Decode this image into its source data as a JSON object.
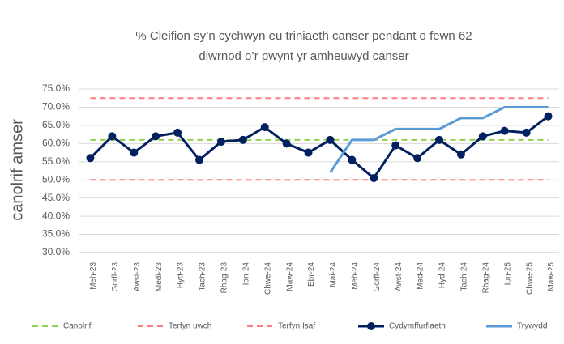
{
  "chart_data": {
    "type": "line",
    "title": [
      "% Cleifion sy’n cychwyn eu triniaeth canser pendant o fewn 62",
      "diwrnod o’r pwynt yr amheuwyd canser"
    ],
    "y_label": "canolrif amser",
    "categories": [
      "Meh-23",
      "Gorff-23",
      "Awst-23",
      "Medi-23",
      "Hyd-23",
      "Tach-23",
      "Rhag-23",
      "Ion-24",
      "Chwe-24",
      "Maw-24",
      "Ebr-24",
      "Mai-24",
      "Meh-24",
      "Gorff-24",
      "Awst-24",
      "Med-24",
      "Hyd-24",
      "Tach-24",
      "Rhag-24",
      "Ion-25",
      "Chwe-25",
      "Maw-25"
    ],
    "ylim": [
      30,
      75
    ],
    "yticks": [
      {
        "value": 30,
        "label": "30.0%"
      },
      {
        "value": 35,
        "label": "35.0%"
      },
      {
        "value": 40,
        "label": "40.0%"
      },
      {
        "value": 45,
        "label": "45.0%"
      },
      {
        "value": 50,
        "label": "50.0%"
      },
      {
        "value": 55,
        "label": "55.0%"
      },
      {
        "value": 60,
        "label": "60.0%"
      },
      {
        "value": 65,
        "label": "65.0%"
      },
      {
        "value": 70,
        "label": "70.0%"
      },
      {
        "value": 75,
        "label": "75.0%"
      }
    ],
    "grid": true,
    "legend": "bottom",
    "series": [
      {
        "name": "Canolrif",
        "color": "#92d050",
        "dash": true,
        "values": [
          61,
          61,
          61,
          61,
          61,
          61,
          61,
          61,
          61,
          61,
          61,
          61,
          61,
          61,
          61,
          61,
          61,
          61,
          61,
          61,
          61,
          61
        ]
      },
      {
        "name": "Terfyn uwch",
        "color": "#ff7c80",
        "dash": true,
        "values": [
          72.5,
          72.5,
          72.5,
          72.5,
          72.5,
          72.5,
          72.5,
          72.5,
          72.5,
          72.5,
          72.5,
          72.5,
          72.5,
          72.5,
          72.5,
          72.5,
          72.5,
          72.5,
          72.5,
          72.5,
          72.5,
          72.5
        ]
      },
      {
        "name": "Terfyn Isaf",
        "color": "#ff7c80",
        "dash": true,
        "values": [
          50,
          50,
          50,
          50,
          50,
          50,
          50,
          50,
          50,
          50,
          50,
          50,
          50,
          50,
          50,
          50,
          50,
          50,
          50,
          50,
          50,
          50
        ]
      },
      {
        "name": "Cydymffurfiaeth",
        "color": "#002060",
        "markers": true,
        "values": [
          56,
          62,
          57.5,
          62,
          63,
          55.5,
          60.5,
          61,
          64.5,
          60,
          57.5,
          61,
          55.5,
          50.5,
          59.5,
          56,
          61,
          57,
          62,
          63.5,
          63,
          67.5
        ]
      },
      {
        "name": "Trywydd",
        "color": "#5b9bd5",
        "values": [
          null,
          null,
          null,
          null,
          null,
          null,
          null,
          null,
          null,
          null,
          null,
          52,
          61,
          61,
          64,
          64,
          64,
          67,
          67,
          70,
          70,
          70
        ]
      }
    ]
  }
}
